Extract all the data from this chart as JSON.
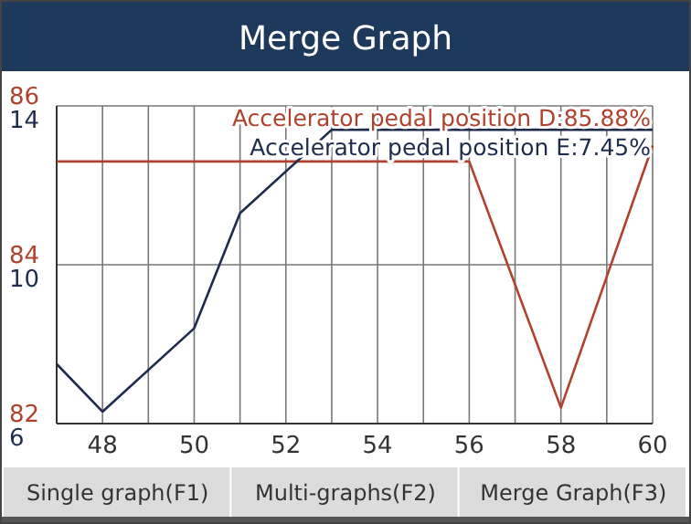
{
  "chart_data": {
    "type": "line",
    "title": "Merge Graph",
    "series": [
      {
        "name": "Accelerator pedal position D:85.88%",
        "color": "#b0412e",
        "axis": "y",
        "x": [
          47,
          56,
          58,
          60
        ],
        "values": [
          85.3,
          85.3,
          82.2,
          85.5
        ]
      },
      {
        "name": "Accelerator pedal position E:7.45%",
        "color": "#1f2b4d",
        "axis": "y2",
        "x": [
          47,
          48,
          50,
          51,
          53,
          60
        ],
        "values": [
          7.5,
          6.3,
          8.4,
          11.3,
          13.4,
          13.4
        ]
      }
    ],
    "xlim": [
      47,
      60
    ],
    "xticks": [
      {
        "value": 47,
        "label": null
      },
      48,
      {
        "value": 49,
        "label": null
      },
      50,
      {
        "value": 51,
        "label": null
      },
      52,
      {
        "value": 53,
        "label": null
      },
      54,
      {
        "value": 55,
        "label": null
      },
      56,
      {
        "value": 57,
        "label": null
      },
      58,
      {
        "value": 59,
        "label": null
      },
      60
    ],
    "ylim": [
      82,
      86
    ],
    "yticks": [
      82,
      84,
      86
    ],
    "y2lim": [
      6,
      14
    ],
    "y2ticks": [
      6,
      10,
      14
    ],
    "grid": true,
    "legend": "top right",
    "marker": "none",
    "line_style": "solid",
    "annotations": [
      "Single graph(F1)",
      "Multi-graphs(F2)",
      "Merge Graph(F3)"
    ]
  }
}
